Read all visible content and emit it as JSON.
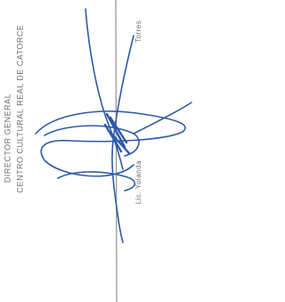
{
  "document": {
    "position": "DIRECTOR GENERAL",
    "organization": "CENTRO CULTURAL REAL DE CATORCE",
    "signatory_first": "Lic. Yolanda",
    "signatory_last": "Torres"
  }
}
